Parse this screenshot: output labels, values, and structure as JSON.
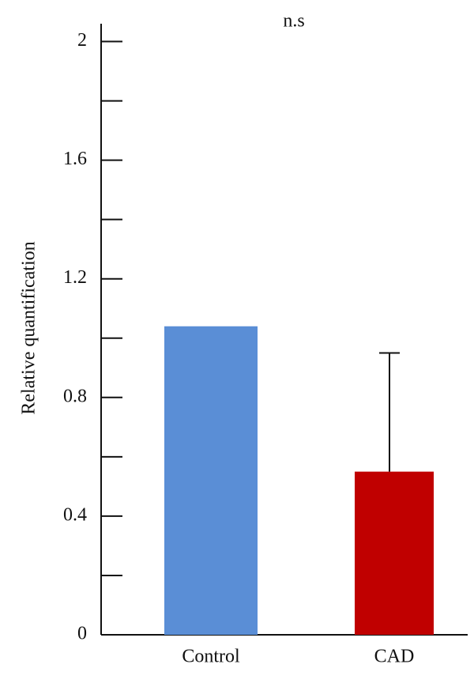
{
  "chart_data": {
    "type": "bar",
    "y_label": "Relative quantification",
    "annotation": "n.s",
    "categories": [
      "Control",
      "CAD"
    ],
    "values": [
      1.04,
      0.55
    ],
    "errors": [
      null,
      0.4
    ],
    "colors": [
      "#5a8ed6",
      "#c00000"
    ],
    "ylim": [
      0,
      2.06
    ],
    "yticks": [
      0,
      0.4,
      0.8,
      1.2,
      1.6,
      2
    ],
    "minor_yticks": [
      0.2,
      0.6,
      1,
      1.4,
      1.8
    ],
    "grid": false
  }
}
